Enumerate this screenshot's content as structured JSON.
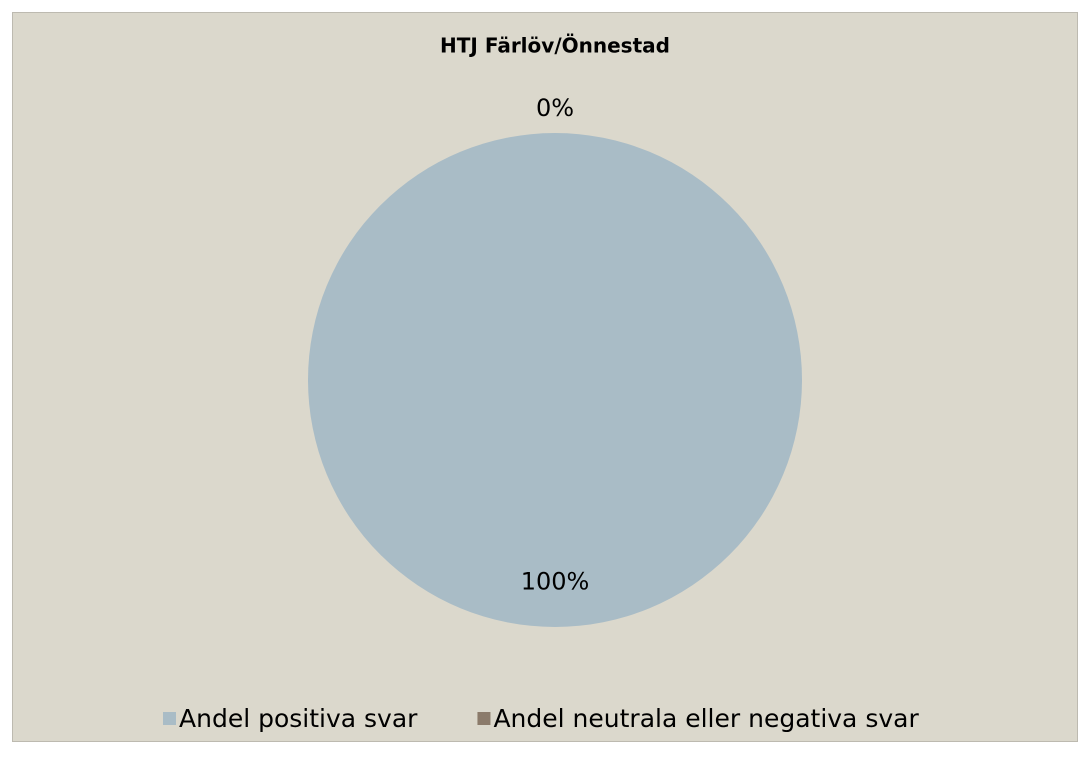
{
  "chart_data": {
    "type": "pie",
    "title": "HTJ Färlöv/Önnestad",
    "categories": [
      "Andel positiva svar",
      "Andel neutrala eller negativa svar"
    ],
    "values": [
      100,
      0
    ],
    "value_labels": [
      "100%",
      "0%"
    ],
    "colors": [
      "#a9bcc6",
      "#8b7b6b"
    ],
    "legend": "bottom"
  }
}
